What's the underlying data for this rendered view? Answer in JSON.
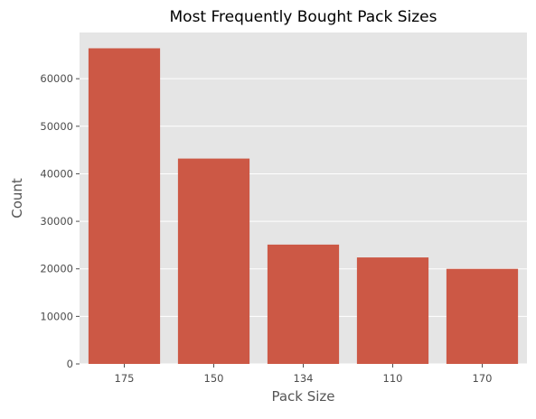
{
  "chart_data": {
    "type": "bar",
    "title": "Most Frequently Bought Pack Sizes",
    "xlabel": "Pack Size",
    "ylabel": "Count",
    "categories": [
      "175",
      "150",
      "134",
      "110",
      "170"
    ],
    "values": [
      66400,
      43200,
      25100,
      22400,
      20000
    ],
    "ylim": [
      0,
      69720
    ],
    "yticks": [
      0,
      10000,
      20000,
      30000,
      40000,
      50000,
      60000
    ],
    "ytick_labels": [
      "0",
      "10000",
      "20000",
      "30000",
      "40000",
      "50000",
      "60000"
    ],
    "grid": true,
    "legend": "none",
    "colors": {
      "bar": "#CC5845",
      "plot_background": "#E5E5E5",
      "grid": "#FFFFFF",
      "tick_label": "#4D4D4D",
      "axis_label": "#555555",
      "title": "#000000"
    }
  }
}
